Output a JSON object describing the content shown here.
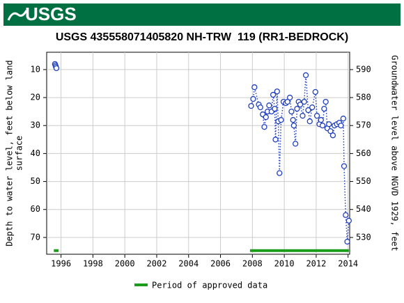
{
  "header": {
    "logo": "USGS"
  },
  "chart_data": {
    "type": "line",
    "title": "USGS 435558071405820 NH-TRW  119 (RR1-BEDROCK)",
    "ylabel": [
      "Depth to water level, feet below land",
      "surface"
    ],
    "y2label": "Groundwater level above NGVD 1929, feet",
    "xlim": [
      1995.1,
      2014.1
    ],
    "xticks": [
      1996,
      1998,
      2000,
      2002,
      2004,
      2006,
      2008,
      2010,
      2012,
      2014
    ],
    "ylim": [
      3.8,
      76
    ],
    "yticks": [
      10,
      20,
      30,
      40,
      50,
      60,
      70
    ],
    "y2lim": [
      596.2,
      524
    ],
    "y2ticks": [
      530,
      540,
      550,
      560,
      570,
      580,
      590
    ],
    "grid": true,
    "series": [
      {
        "color": "#1f3fbf",
        "x": [
          1995.62,
          1995.65,
          1995.68,
          1995.71,
          null,
          2007.92,
          2008.05,
          2008.13,
          2008.4,
          2008.5,
          2008.65,
          2008.75,
          2008.85,
          2008.95,
          2009.05,
          2009.2,
          2009.3,
          2009.4,
          2009.45,
          2009.55,
          2009.62,
          2009.7,
          2009.8,
          2009.95,
          2010.1,
          2010.2,
          2010.35,
          2010.45,
          2010.55,
          2010.6,
          2010.7,
          2010.8,
          2010.9,
          2011.0,
          2011.15,
          2011.25,
          2011.35,
          2011.5,
          2011.6,
          2011.75,
          2011.95,
          2012.05,
          2012.2,
          2012.3,
          2012.4,
          2012.5,
          2012.6,
          2012.7,
          2012.8,
          2012.9,
          2013.05,
          2013.15,
          2013.3,
          2013.45,
          2013.55,
          2013.7,
          2013.75,
          2013.85,
          2013.95,
          2014.05
        ],
        "values": [
          8,
          8.5,
          9,
          9.5,
          null,
          23,
          20.5,
          16.3,
          22.5,
          23.5,
          26,
          30.5,
          27,
          25,
          22.8,
          25,
          19,
          24,
          35,
          17.8,
          28.5,
          47,
          28,
          21.5,
          22,
          21.5,
          20,
          25,
          28,
          30,
          36.5,
          24,
          21.5,
          22.5,
          26.5,
          21.5,
          12,
          24.5,
          28.5,
          23.5,
          18,
          26.5,
          29.5,
          28,
          30,
          24,
          21.5,
          31,
          29.5,
          32,
          33.5,
          30,
          29.5,
          29,
          30,
          27.5,
          44.5,
          62,
          71.5,
          64
        ]
      }
    ],
    "approved": {
      "name": "Period of approved data",
      "color": "#1a9e1a",
      "depth": 74.7,
      "periods": [
        [
          1995.55,
          1995.85
        ],
        [
          2007.85,
          2014.05
        ]
      ]
    }
  }
}
